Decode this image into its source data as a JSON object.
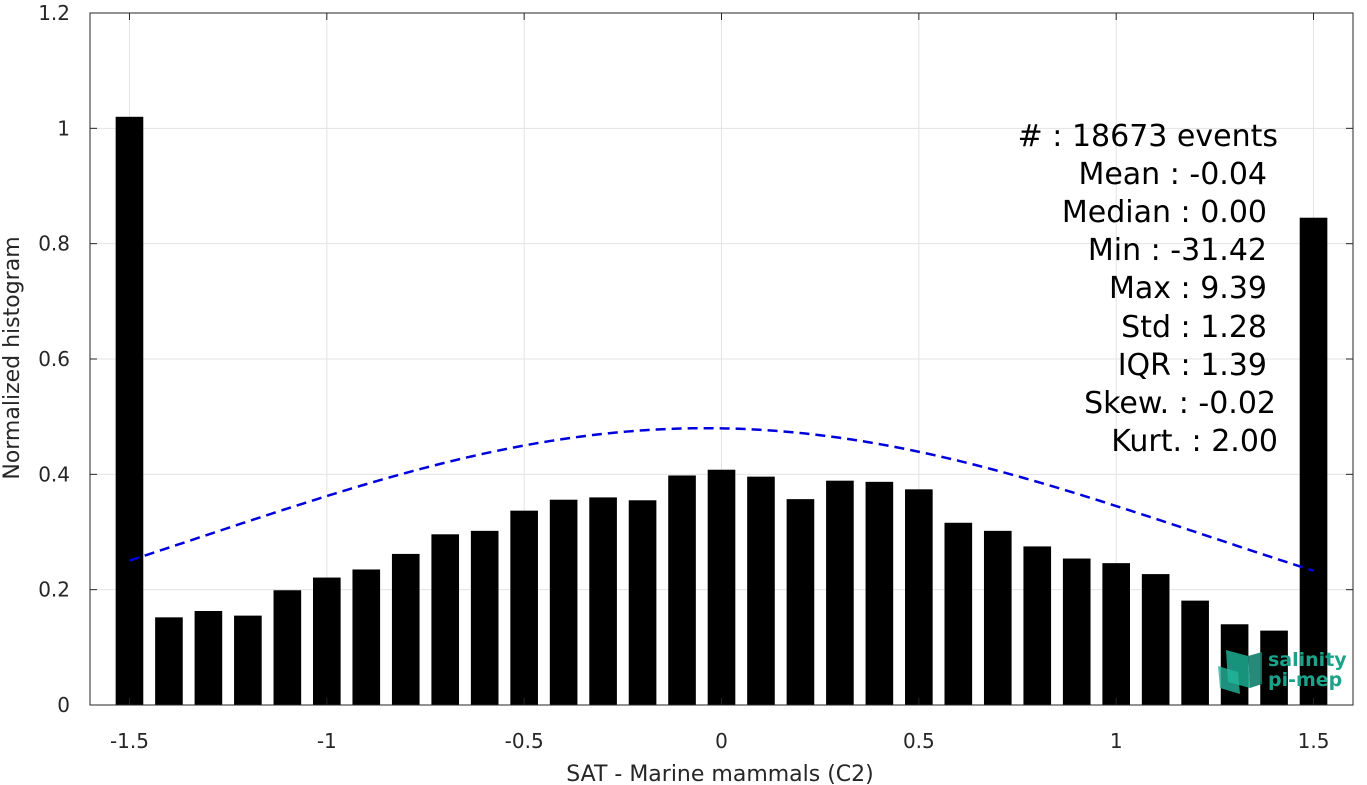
{
  "chart_data": {
    "type": "bar",
    "xlabel": "SAT - Marine mammals (C2)",
    "ylabel": "Normalized histogram",
    "xlim": [
      -1.6,
      1.6
    ],
    "ylim": [
      0,
      1.2
    ],
    "grid": true,
    "x_ticks": [
      -1.5,
      -1,
      -0.5,
      0,
      0.5,
      1,
      1.5
    ],
    "x_tick_labels": [
      "-1.5",
      "-1",
      "-0.5",
      "0",
      "0.5",
      "1",
      "1.5"
    ],
    "y_ticks": [
      0,
      0.2,
      0.4,
      0.6,
      0.8,
      1,
      1.2
    ],
    "y_tick_labels": [
      "0",
      "0.2",
      "0.4",
      "0.6",
      "0.8",
      "1",
      "1.2"
    ],
    "bar_color": "#000000",
    "fit_color": "#0000dd",
    "bars": {
      "x": [
        -1.5,
        -1.4,
        -1.3,
        -1.2,
        -1.1,
        -1.0,
        -0.9,
        -0.8,
        -0.7,
        -0.6,
        -0.5,
        -0.4,
        -0.3,
        -0.2,
        -0.1,
        0.0,
        0.1,
        0.2,
        0.3,
        0.4,
        0.5,
        0.6,
        0.7,
        0.8,
        0.9,
        1.0,
        1.1,
        1.2,
        1.3,
        1.4,
        1.5
      ],
      "values": [
        1.02,
        0.152,
        0.163,
        0.155,
        0.199,
        0.221,
        0.235,
        0.262,
        0.296,
        0.302,
        0.337,
        0.356,
        0.36,
        0.355,
        0.398,
        0.408,
        0.396,
        0.357,
        0.389,
        0.387,
        0.374,
        0.316,
        0.302,
        0.275,
        0.254,
        0.246,
        0.227,
        0.181,
        0.14,
        0.129,
        0.845
      ]
    },
    "fit_curve": {
      "style": "dashed",
      "mean": -0.04,
      "std": 1.28,
      "peak": 0.48,
      "x_range": [
        -1.5,
        1.5
      ]
    },
    "annotations": [
      "#  : 18673 events",
      "Mean : -0.04",
      "Median : 0.00",
      "Min : -31.42",
      "Max : 9.39",
      "Std : 1.28",
      "IQR : 1.39",
      "Skew. : -0.02",
      "Kurt. : 2.00"
    ]
  },
  "logo": {
    "line1": "salinity",
    "line2": "pi-mep",
    "color": "#1aa38a"
  }
}
